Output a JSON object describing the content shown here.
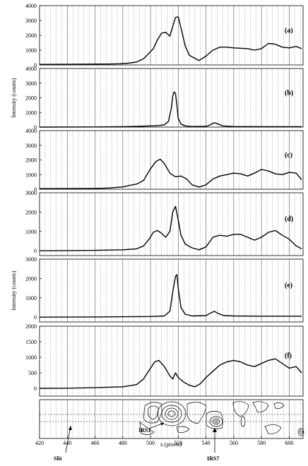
{
  "chart_data": [
    {
      "type": "line",
      "panel_label": "(a)",
      "ylim": [
        0,
        4000
      ],
      "yticks": [
        0,
        1000,
        2000,
        3000,
        4000
      ],
      "ylabel": "",
      "x": [
        420,
        440,
        460,
        470,
        478,
        484,
        490,
        495,
        498,
        502,
        505,
        508,
        511,
        514,
        516,
        518,
        520,
        522,
        525,
        528,
        531,
        535,
        540,
        545,
        550,
        555,
        560,
        570,
        575,
        580,
        585,
        590,
        595,
        600,
        605,
        609
      ],
      "y": [
        40,
        45,
        55,
        60,
        80,
        120,
        200,
        420,
        700,
        1100,
        1700,
        2150,
        2200,
        1950,
        2600,
        3200,
        3250,
        2500,
        1300,
        650,
        500,
        300,
        600,
        1000,
        1200,
        1200,
        1150,
        1100,
        1000,
        1100,
        1450,
        1400,
        1200,
        1150,
        1250,
        1100
      ]
    },
    {
      "type": "line",
      "panel_label": "(b)",
      "ylim": [
        0,
        4000
      ],
      "yticks": [
        0,
        1000,
        2000,
        3000,
        4000
      ],
      "ylabel": "Intensity (counts)",
      "x": [
        420,
        460,
        480,
        490,
        500,
        505,
        510,
        513,
        515,
        516,
        517,
        518,
        519,
        520,
        522,
        525,
        530,
        540,
        543,
        546,
        549,
        552,
        560,
        580,
        600,
        609
      ],
      "y": [
        0,
        10,
        30,
        50,
        80,
        100,
        150,
        400,
        1300,
        2100,
        2400,
        2300,
        1500,
        600,
        200,
        80,
        40,
        50,
        150,
        300,
        200,
        80,
        40,
        30,
        30,
        30
      ]
    },
    {
      "type": "line",
      "panel_label": "(c)",
      "ylim": [
        0,
        4000
      ],
      "yticks": [
        0,
        1000,
        2000,
        3000,
        4000
      ],
      "ylabel": "",
      "x": [
        420,
        440,
        460,
        470,
        480,
        485,
        490,
        495,
        500,
        504,
        507,
        510,
        514,
        518,
        522,
        526,
        530,
        535,
        540,
        545,
        550,
        555,
        560,
        565,
        570,
        575,
        580,
        585,
        590,
        595,
        600,
        605,
        609
      ],
      "y": [
        40,
        45,
        55,
        80,
        160,
        260,
        350,
        600,
        1400,
        1900,
        2050,
        1750,
        1100,
        850,
        900,
        700,
        300,
        150,
        300,
        700,
        900,
        1000,
        1100,
        1050,
        900,
        1100,
        1350,
        1250,
        1050,
        1000,
        1150,
        1100,
        650
      ]
    },
    {
      "type": "line",
      "panel_label": "(d)",
      "ylim": [
        -250,
        3000
      ],
      "yticks": [
        0,
        1000,
        2000,
        3000
      ],
      "ylabel": "",
      "x": [
        420,
        440,
        460,
        480,
        490,
        495,
        499,
        502,
        505,
        508,
        511,
        514,
        516,
        518,
        520,
        522,
        525,
        530,
        535,
        540,
        545,
        550,
        555,
        560,
        565,
        570,
        575,
        580,
        585,
        590,
        595,
        600,
        605,
        609
      ],
      "y": [
        0,
        10,
        20,
        50,
        100,
        250,
        600,
        950,
        1050,
        900,
        700,
        1000,
        2000,
        2300,
        1600,
        800,
        350,
        150,
        50,
        200,
        700,
        800,
        750,
        850,
        850,
        700,
        550,
        700,
        950,
        1050,
        800,
        600,
        250,
        100
      ]
    },
    {
      "type": "line",
      "panel_label": "(e)",
      "ylim": [
        -250,
        3000
      ],
      "yticks": [
        0,
        1000,
        2000,
        3000
      ],
      "ylabel": "Intensity (counts)",
      "x": [
        420,
        460,
        480,
        500,
        510,
        514,
        516,
        518,
        519,
        520,
        522,
        525,
        530,
        540,
        543,
        546,
        549,
        553,
        560,
        580,
        600,
        609
      ],
      "y": [
        0,
        10,
        20,
        30,
        60,
        300,
        1300,
        2100,
        2200,
        1500,
        500,
        150,
        60,
        80,
        200,
        300,
        180,
        80,
        60,
        50,
        50,
        50
      ]
    },
    {
      "type": "line",
      "panel_label": "(f)",
      "ylim": [
        -250,
        2000
      ],
      "yticks": [
        0,
        500,
        1000,
        1500,
        2000
      ],
      "ylabel": "",
      "x": [
        420,
        440,
        460,
        480,
        490,
        495,
        500,
        503,
        506,
        510,
        514,
        516,
        518,
        520,
        524,
        528,
        532,
        536,
        540,
        545,
        550,
        555,
        560,
        565,
        570,
        575,
        580,
        585,
        590,
        595,
        600,
        605,
        609
      ],
      "y": [
        0,
        5,
        20,
        50,
        120,
        300,
        650,
        850,
        900,
        700,
        400,
        300,
        500,
        350,
        200,
        100,
        50,
        150,
        350,
        550,
        750,
        850,
        900,
        850,
        750,
        700,
        800,
        900,
        950,
        800,
        650,
        700,
        500
      ]
    }
  ],
  "image_panel": {
    "annotations": [
      "IRS1",
      "IRS7",
      "Slit"
    ]
  },
  "x_axis": {
    "label": "x (pixels)",
    "xlim": [
      420,
      610
    ],
    "ticks": [
      420,
      440,
      460,
      480,
      500,
      520,
      540,
      560,
      580,
      600
    ]
  },
  "colors": {
    "line": "#000000",
    "background": "#ffffff"
  }
}
